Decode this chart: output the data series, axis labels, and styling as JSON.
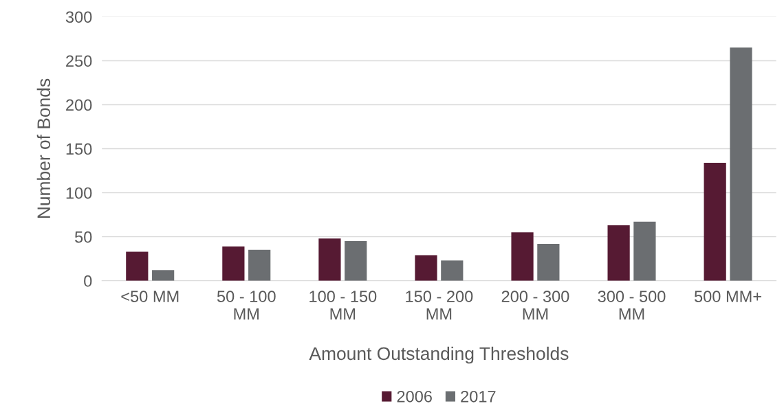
{
  "chart_data": {
    "type": "bar",
    "xlabel": "Amount Outstanding Thresholds",
    "ylabel": "Number of Bonds",
    "categories": [
      "<50 MM",
      "50 - 100 MM",
      "100 - 150 MM",
      "150 - 200 MM",
      "200 - 300 MM",
      "300 - 500 MM",
      "500 MM+"
    ],
    "series": [
      {
        "name": "2006",
        "color": "#561a33",
        "values": [
          33,
          39,
          48,
          29,
          55,
          63,
          134
        ]
      },
      {
        "name": "2017",
        "color": "#6b6e71",
        "values": [
          12,
          35,
          45,
          23,
          42,
          67,
          265
        ]
      }
    ],
    "ylim": [
      0,
      300
    ],
    "yticks": [
      0,
      50,
      100,
      150,
      200,
      250,
      300
    ],
    "grid": "y",
    "legend": "bottom"
  }
}
